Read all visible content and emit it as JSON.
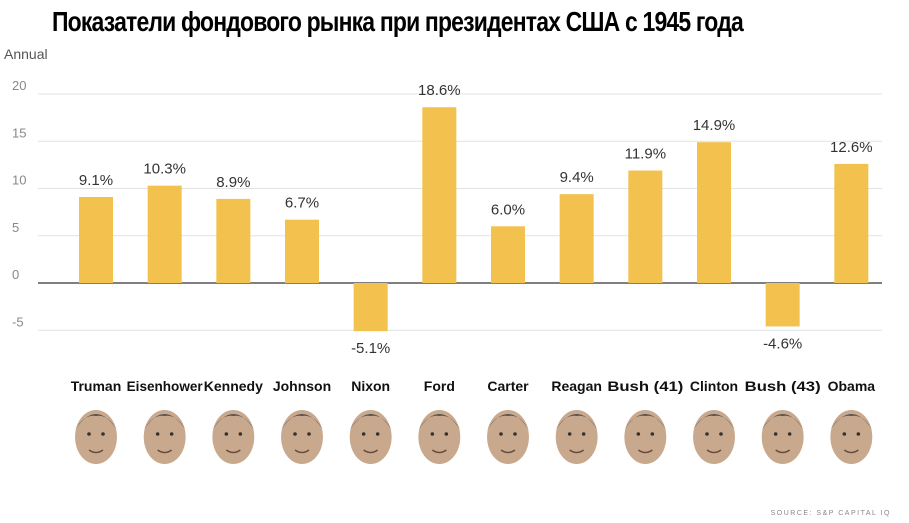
{
  "title": "Показатели фондового рынка при президентах США с 1945 года",
  "source": "SOURCE: S&P CAPITAL IQ",
  "colors": {
    "bar": "#f2c14e",
    "grid": "#dfe3e6",
    "zero": "#555555",
    "face": "#c9a98e"
  },
  "chart_data": {
    "type": "bar",
    "title": "Показатели фондового рынка при президентах США с 1945 года",
    "xlabel": "",
    "ylabel": "Annual",
    "ylim": [
      -7,
      21
    ],
    "yticks": [
      -5,
      0,
      5,
      10,
      15,
      20
    ],
    "grid": true,
    "categories": [
      "Truman",
      "Eisenhower",
      "Kennedy",
      "Johnson",
      "Nixon",
      "Ford",
      "Carter",
      "Reagan",
      "Bush (41)",
      "Clinton",
      "Bush (43)",
      "Obama"
    ],
    "values": [
      9.1,
      10.3,
      8.9,
      6.7,
      -5.1,
      18.6,
      6.0,
      9.4,
      11.9,
      14.9,
      -4.6,
      12.6
    ],
    "data_labels": [
      "9.1%",
      "10.3%",
      "8.9%",
      "6.7%",
      "-5.1%",
      "18.6%",
      "6.0%",
      "9.4%",
      "11.9%",
      "14.9%",
      "-4.6%",
      "12.6%"
    ]
  }
}
